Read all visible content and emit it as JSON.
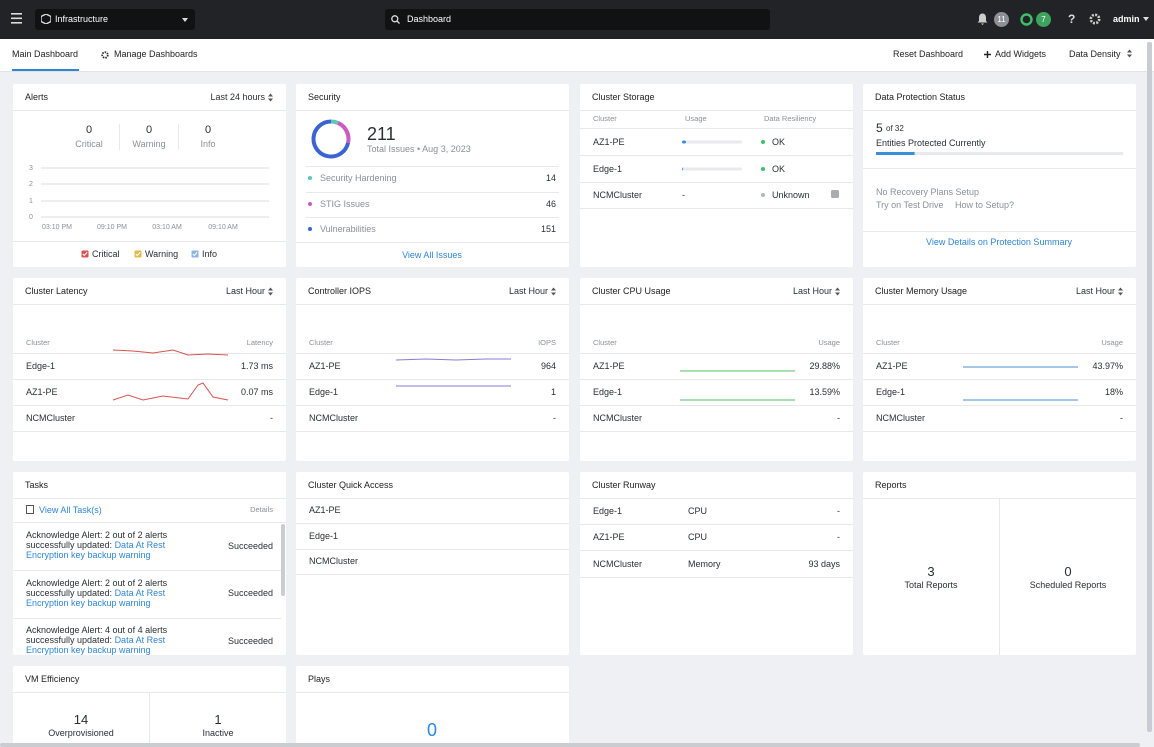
{
  "topbar": {
    "app": "Infrastructure",
    "search": "Dashboard",
    "alerts_badge": "11",
    "tasks_badge": "7",
    "help": "?",
    "user": "admin"
  },
  "tabs": {
    "main": "Main Dashboard",
    "manage": "Manage Dashboards",
    "reset": "Reset Dashboard",
    "add": "Add Widgets",
    "density": "Data Density"
  },
  "widgets": {
    "alerts": {
      "title": "Alerts",
      "range": "Last 24 hours",
      "counts": [
        {
          "value": "0",
          "label": "Critical"
        },
        {
          "value": "0",
          "label": "Warning"
        },
        {
          "value": "0",
          "label": "Info"
        }
      ],
      "yticks": [
        "3",
        "2",
        "1",
        "0"
      ],
      "xticks": [
        "03:10 PM",
        "09:10 PM",
        "03:10 AM",
        "09:10 AM"
      ],
      "legend": [
        "Critical",
        "Warning",
        "Info"
      ]
    },
    "security": {
      "title": "Security",
      "total": "211",
      "total_label": "Total Issues • Aug 3, 2023",
      "items": [
        {
          "name": "Security Hardening",
          "value": "14"
        },
        {
          "name": "STIG Issues",
          "value": "46"
        },
        {
          "name": "Vulnerabilities",
          "value": "151"
        }
      ],
      "link": "View All Issues"
    },
    "storage": {
      "title": "Cluster Storage",
      "headers": [
        "Cluster",
        "Usage",
        "Data Resiliency"
      ],
      "rows": [
        {
          "cluster": "AZ1-PE",
          "status": "OK"
        },
        {
          "cluster": "Edge-1",
          "status": "OK"
        },
        {
          "cluster": "NCMCluster",
          "usage": "-",
          "status": "Unknown"
        }
      ]
    },
    "protection": {
      "title": "Data Protection Status",
      "protected": "5",
      "of_total": "of 32",
      "caption": "Entities Protected Currently",
      "no_plans": "No Recovery Plans Setup",
      "test_drive": "Try on Test Drive",
      "how_to": "How to Setup?",
      "link": "View Details on Protection Summary"
    },
    "latency": {
      "title": "Cluster Latency",
      "range": "Last Hour",
      "headers": [
        "Cluster",
        "Latency"
      ],
      "rows": [
        {
          "cluster": "Edge-1",
          "value": "1.73 ms"
        },
        {
          "cluster": "AZ1-PE",
          "value": "0.07 ms"
        },
        {
          "cluster": "NCMCluster",
          "value": "-"
        }
      ]
    },
    "iops": {
      "title": "Controller IOPS",
      "range": "Last Hour",
      "headers": [
        "Cluster",
        "IOPS"
      ],
      "rows": [
        {
          "cluster": "AZ1-PE",
          "value": "964"
        },
        {
          "cluster": "Edge-1",
          "value": "1"
        },
        {
          "cluster": "NCMCluster",
          "value": "-"
        }
      ]
    },
    "cpu": {
      "title": "Cluster CPU Usage",
      "range": "Last Hour",
      "headers": [
        "Cluster",
        "Usage"
      ],
      "rows": [
        {
          "cluster": "AZ1-PE",
          "value": "29.88%"
        },
        {
          "cluster": "Edge-1",
          "value": "13.59%"
        },
        {
          "cluster": "NCMCluster",
          "value": "-"
        }
      ]
    },
    "memory": {
      "title": "Cluster Memory Usage",
      "range": "Last Hour",
      "headers": [
        "Cluster",
        "Usage"
      ],
      "rows": [
        {
          "cluster": "AZ1-PE",
          "value": "43.97%"
        },
        {
          "cluster": "Edge-1",
          "value": "18%"
        },
        {
          "cluster": "NCMCluster",
          "value": "-"
        }
      ]
    },
    "tasks": {
      "title": "Tasks",
      "link": "View All Task(s)",
      "details": "Details",
      "items": [
        {
          "text": "Acknowledge Alert: 2 out of 2 alerts successfully updated:",
          "link": "Data At Rest Encryption key backup warning",
          "status": "Succeeded"
        },
        {
          "text": "Acknowledge Alert: 2 out of 2 alerts successfully updated:",
          "link": "Data At Rest Encryption key backup warning",
          "status": "Succeeded"
        },
        {
          "text": "Acknowledge Alert: 4 out of 4 alerts successfully updated:",
          "link": "Data At Rest Encryption key backup warning",
          "status": "Succeeded"
        }
      ]
    },
    "quick_access": {
      "title": "Cluster Quick Access",
      "items": [
        "AZ1-PE",
        "Edge-1",
        "NCMCluster"
      ]
    },
    "runway": {
      "title": "Cluster Runway",
      "rows": [
        {
          "cluster": "Edge-1",
          "resource": "CPU",
          "value": "-"
        },
        {
          "cluster": "AZ1-PE",
          "resource": "CPU",
          "value": "-"
        },
        {
          "cluster": "NCMCluster",
          "resource": "Memory",
          "value": "93 days"
        }
      ]
    },
    "reports": {
      "title": "Reports",
      "total": "3",
      "total_label": "Total Reports",
      "scheduled": "0",
      "scheduled_label": "Scheduled Reports"
    },
    "vm_efficiency": {
      "title": "VM Efficiency",
      "overprovisioned": "14",
      "overprovisioned_label": "Overprovisioned",
      "inactive": "1",
      "inactive_label": "Inactive"
    },
    "plays": {
      "title": "Plays",
      "completed": "0"
    }
  }
}
